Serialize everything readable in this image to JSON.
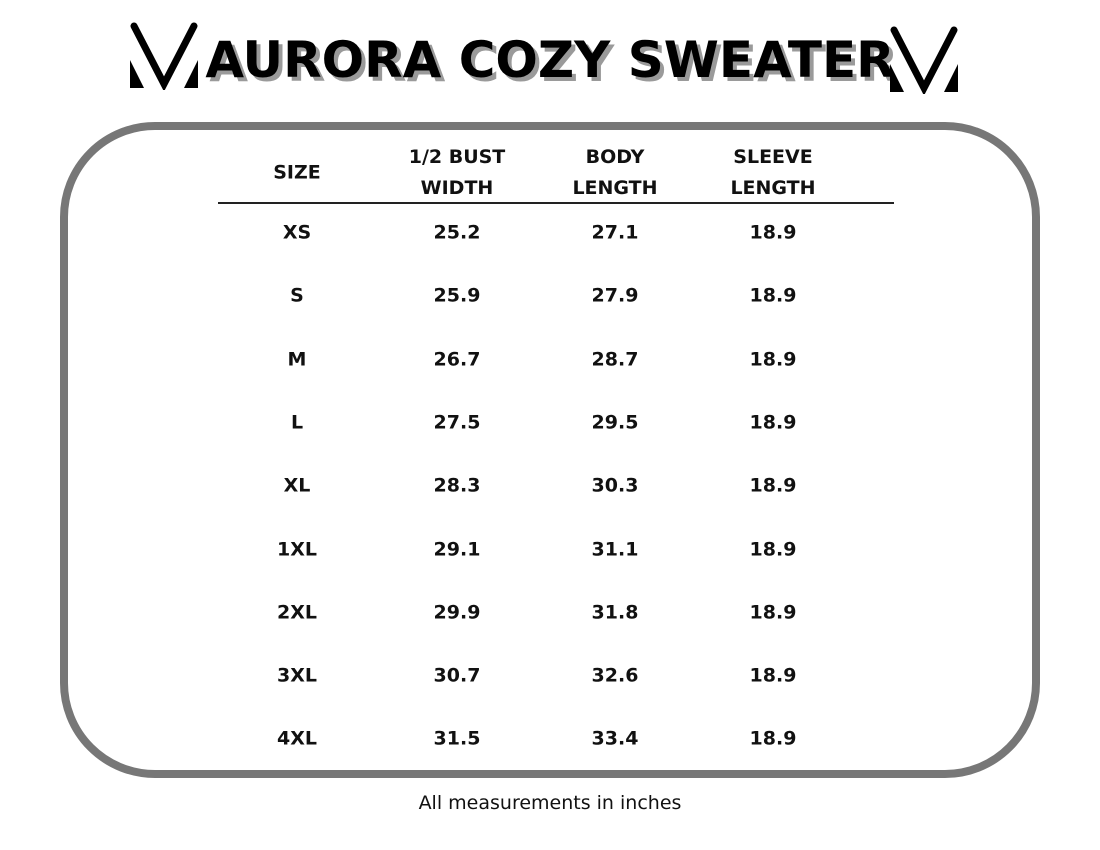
{
  "header": {
    "title": "AURORA COZY SWEATER",
    "logo_icon": "brand-v-logo"
  },
  "table": {
    "columns": [
      {
        "line1": "SIZE",
        "line2": ""
      },
      {
        "line1": "1/2 BUST",
        "line2": "WIDTH"
      },
      {
        "line1": "BODY",
        "line2": "LENGTH"
      },
      {
        "line1": "SLEEVE",
        "line2": "LENGTH"
      }
    ],
    "rows": [
      [
        "XS",
        "25.2",
        "27.1",
        "18.9"
      ],
      [
        "S",
        "25.9",
        "27.9",
        "18.9"
      ],
      [
        "M",
        "26.7",
        "28.7",
        "18.9"
      ],
      [
        "L",
        "27.5",
        "29.5",
        "18.9"
      ],
      [
        "XL",
        "28.3",
        "30.3",
        "18.9"
      ],
      [
        "1XL",
        "29.1",
        "31.1",
        "18.9"
      ],
      [
        "2XL",
        "29.9",
        "31.8",
        "18.9"
      ],
      [
        "3XL",
        "30.7",
        "32.6",
        "18.9"
      ],
      [
        "4XL",
        "31.5",
        "33.4",
        "18.9"
      ]
    ]
  },
  "footer": {
    "note": "All measurements in inches"
  },
  "colors": {
    "border": "#777777",
    "shadow": "#9a9a9a"
  }
}
